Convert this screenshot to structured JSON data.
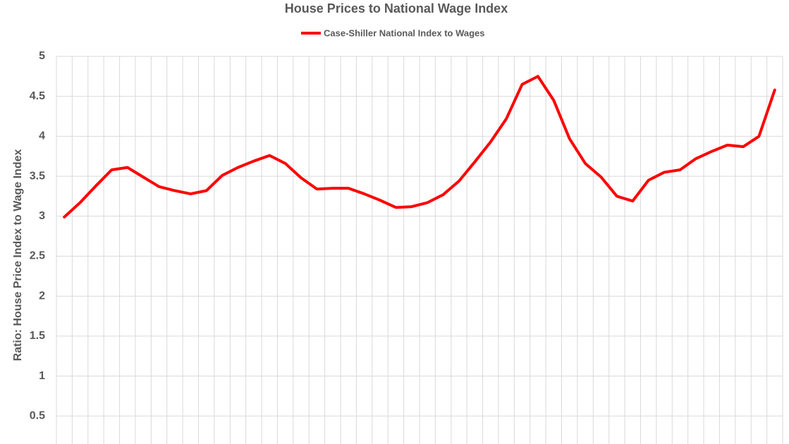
{
  "chart_data": {
    "type": "line",
    "title": "House Prices to National Wage Index",
    "y_label": "Ratio: House Price Index to Wage Index",
    "categories": [
      null,
      null,
      null,
      null,
      null,
      null,
      null,
      null,
      null,
      null,
      null,
      null,
      null,
      null,
      null,
      null,
      null,
      null,
      null,
      null,
      null,
      null,
      null,
      null,
      null,
      null,
      null,
      null,
      null,
      null,
      null,
      null,
      null,
      null,
      null,
      null,
      null,
      null,
      null,
      null,
      null,
      null,
      null,
      null,
      null,
      null
    ],
    "series": [
      {
        "name": "Case-Shiller National Index to Wages",
        "color": "#ff0000",
        "values": [
          2.99,
          3.17,
          3.38,
          3.58,
          3.61,
          3.49,
          3.37,
          3.32,
          3.28,
          3.32,
          3.51,
          3.61,
          3.69,
          3.76,
          3.66,
          3.48,
          3.34,
          3.35,
          3.35,
          3.28,
          3.2,
          3.11,
          3.12,
          3.17,
          3.27,
          3.44,
          3.68,
          3.93,
          4.22,
          4.65,
          4.75,
          4.45,
          3.97,
          3.66,
          3.49,
          3.25,
          3.19,
          3.45,
          3.55,
          3.58,
          3.72,
          3.81,
          3.89,
          3.87,
          4.0,
          4.58
        ]
      }
    ],
    "ylim": [
      0.15,
      5
    ],
    "yticks": [
      0.5,
      1,
      1.5,
      2,
      2.5,
      3,
      3.5,
      4,
      4.5,
      5
    ],
    "grid": true,
    "legend": "top"
  }
}
